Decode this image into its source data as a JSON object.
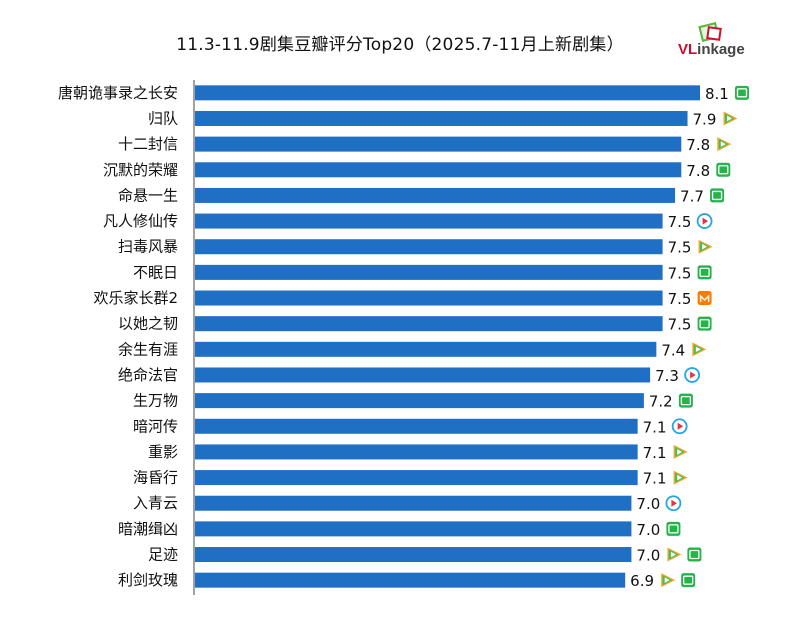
{
  "title": "11.3-11.9剧集豆瓣评分Top20（2025.7-11月上新剧集）",
  "logo": "VLinkage",
  "colors": {
    "bar": "#1f6fc4",
    "axis": "#444444",
    "iqiyi": "#27b24a",
    "tencent_green": "#3dbf5a",
    "tencent_orange": "#f6a623",
    "youku_blue": "#23a6e8",
    "youku_red": "#e8314a",
    "mango": "#ff7a00"
  },
  "chart_data": {
    "type": "bar",
    "orientation": "horizontal",
    "categories": [
      "唐朝诡事录之长安",
      "归队",
      "十二封信",
      "沉默的荣耀",
      "命悬一生",
      "凡人修仙传",
      "扫毒风暴",
      "不眠日",
      "欢乐家长群2",
      "以她之韧",
      "余生有涯",
      "绝命法官",
      "生万物",
      "暗河传",
      "重影",
      "海昏行",
      "入青云",
      "暗潮缉凶",
      "足迹",
      "利剑玫瑰"
    ],
    "values": [
      8.1,
      7.9,
      7.8,
      7.8,
      7.7,
      7.5,
      7.5,
      7.5,
      7.5,
      7.5,
      7.4,
      7.3,
      7.2,
      7.1,
      7.1,
      7.1,
      7.0,
      7.0,
      7.0,
      6.9
    ],
    "value_labels": [
      "8.1",
      "7.9",
      "7.8",
      "7.8",
      "7.7",
      "7.5",
      "7.5",
      "7.5",
      "7.5",
      "7.5",
      "7.4",
      "7.3",
      "7.2",
      "7.1",
      "7.1",
      "7.1",
      "7.0",
      "7.0",
      "7.0",
      "6.9"
    ],
    "platform_icons": [
      [
        "iqiyi-icon"
      ],
      [
        "tencent-video-icon"
      ],
      [
        "tencent-video-icon"
      ],
      [
        "iqiyi-icon"
      ],
      [
        "iqiyi-icon"
      ],
      [
        "youku-icon"
      ],
      [
        "tencent-video-icon"
      ],
      [
        "iqiyi-icon"
      ],
      [
        "mango-tv-icon"
      ],
      [
        "iqiyi-icon"
      ],
      [
        "tencent-video-icon"
      ],
      [
        "youku-icon"
      ],
      [
        "iqiyi-icon"
      ],
      [
        "youku-icon"
      ],
      [
        "tencent-video-icon"
      ],
      [
        "tencent-video-icon"
      ],
      [
        "youku-icon"
      ],
      [
        "iqiyi-icon"
      ],
      [
        "tencent-video-icon",
        "iqiyi-icon"
      ],
      [
        "tencent-video-icon",
        "iqiyi-icon"
      ]
    ],
    "xlim": [
      0,
      8.1
    ],
    "grid": false,
    "legend": "none"
  }
}
